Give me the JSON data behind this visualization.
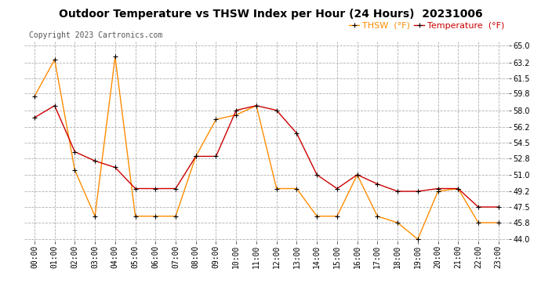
{
  "title": "Outdoor Temperature vs THSW Index per Hour (24 Hours)  20231006",
  "copyright": "Copyright 2023 Cartronics.com",
  "legend_thsw": "THSW  (°F)",
  "legend_temp": "Temperature  (°F)",
  "hours": [
    "00:00",
    "01:00",
    "02:00",
    "03:00",
    "04:00",
    "05:00",
    "06:00",
    "07:00",
    "08:00",
    "09:00",
    "10:00",
    "11:00",
    "12:00",
    "13:00",
    "14:00",
    "15:00",
    "16:00",
    "17:00",
    "18:00",
    "19:00",
    "20:00",
    "21:00",
    "22:00",
    "23:00"
  ],
  "temperature": [
    57.2,
    58.5,
    53.5,
    52.5,
    51.8,
    49.5,
    49.5,
    49.5,
    53.0,
    53.0,
    58.0,
    58.5,
    58.0,
    55.5,
    51.0,
    49.5,
    51.0,
    50.0,
    49.2,
    49.2,
    49.5,
    49.5,
    47.5,
    47.5
  ],
  "thsw": [
    59.5,
    63.5,
    51.5,
    46.5,
    63.8,
    46.5,
    46.5,
    46.5,
    53.0,
    57.0,
    57.5,
    58.5,
    49.5,
    49.5,
    46.5,
    46.5,
    51.0,
    46.5,
    45.8,
    44.0,
    49.2,
    49.5,
    45.8,
    45.8
  ],
  "ylim_min": 44.0,
  "ylim_max": 65.0,
  "yticks": [
    44.0,
    45.8,
    47.5,
    49.2,
    51.0,
    52.8,
    54.5,
    56.2,
    58.0,
    59.8,
    61.5,
    63.2,
    65.0
  ],
  "temp_color": "#cc0000",
  "thsw_color": "#ff8c00",
  "marker_color": "#000000",
  "grid_color": "#b0b0b0",
  "background_color": "#ffffff",
  "title_fontsize": 10,
  "axis_fontsize": 7,
  "legend_fontsize": 8,
  "copyright_fontsize": 7
}
